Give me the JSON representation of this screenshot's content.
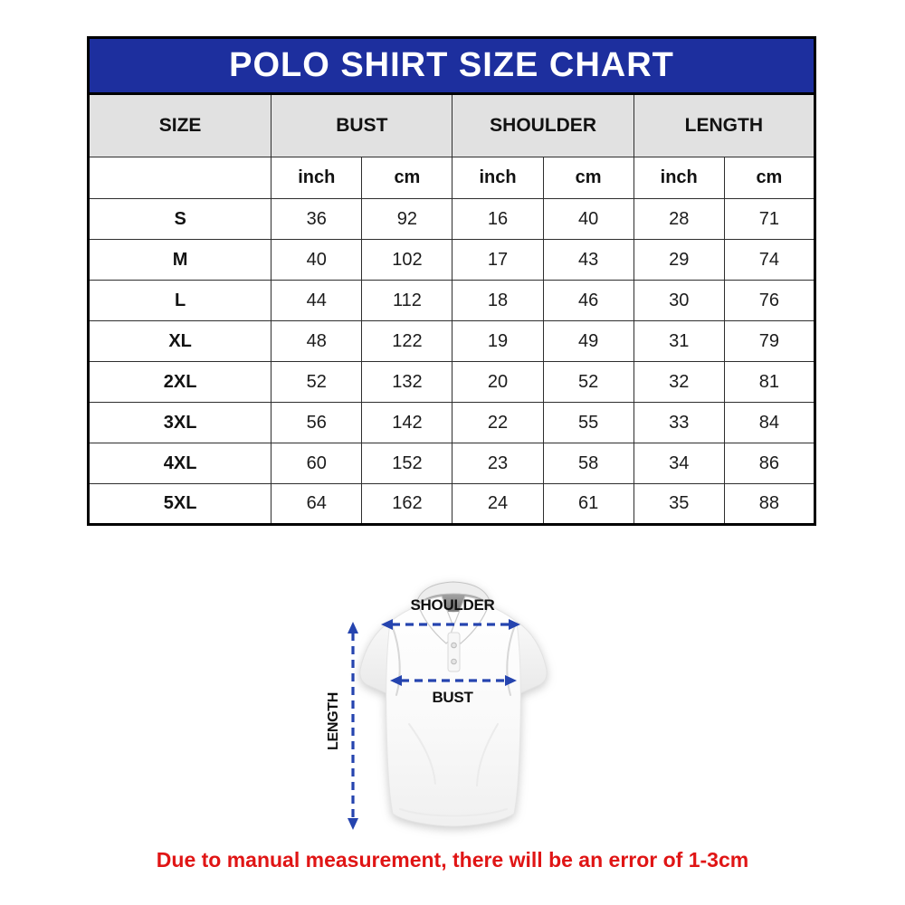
{
  "disclaimer": "Due to manual measurement, there will be an error of 1-3cm",
  "diagram": {
    "shoulder_label": "SHOULDER",
    "bust_label": "BUST",
    "length_label": "LENGTH"
  },
  "colors": {
    "header_blue": "#1d2f9e",
    "arrow_blue": "#2544af",
    "note_red": "#e01515",
    "header_gray": "#e1e1e1"
  },
  "chart_data": {
    "type": "table",
    "title": "POLO SHIRT SIZE CHART",
    "columns": [
      "SIZE",
      "BUST",
      "SHOULDER",
      "LENGTH"
    ],
    "units": [
      "inch",
      "cm",
      "inch",
      "cm",
      "inch",
      "cm"
    ],
    "rows": [
      {
        "size": "S",
        "values": [
          36,
          92,
          16,
          40,
          28,
          71
        ]
      },
      {
        "size": "M",
        "values": [
          40,
          102,
          17,
          43,
          29,
          74
        ]
      },
      {
        "size": "L",
        "values": [
          44,
          112,
          18,
          46,
          30,
          76
        ]
      },
      {
        "size": "XL",
        "values": [
          48,
          122,
          19,
          49,
          31,
          79
        ]
      },
      {
        "size": "2XL",
        "values": [
          52,
          132,
          20,
          52,
          32,
          81
        ]
      },
      {
        "size": "3XL",
        "values": [
          56,
          142,
          22,
          55,
          33,
          84
        ]
      },
      {
        "size": "4XL",
        "values": [
          60,
          152,
          23,
          58,
          34,
          86
        ]
      },
      {
        "size": "5XL",
        "values": [
          64,
          162,
          24,
          61,
          35,
          88
        ]
      }
    ]
  }
}
